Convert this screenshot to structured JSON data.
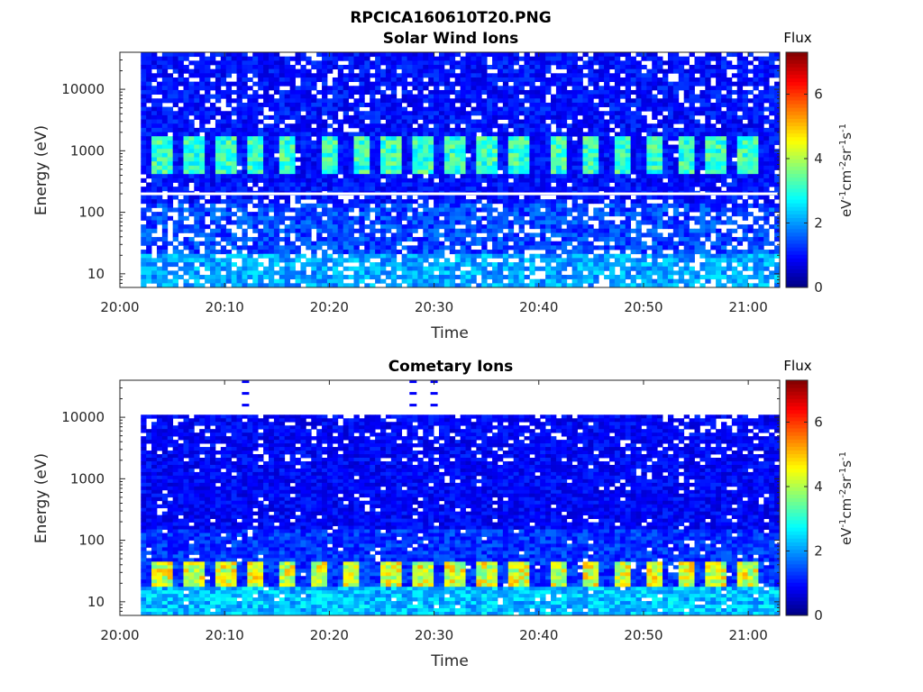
{
  "figure": {
    "title": "RPCICA160610T20.PNG"
  },
  "chart_data": [
    {
      "type": "heatmap",
      "title": "Solar Wind Ions",
      "xlabel": "Time",
      "ylabel": "Energy (eV)",
      "x_ticks": [
        "20:00",
        "20:10",
        "20:20",
        "20:30",
        "20:40",
        "20:50",
        "21:00"
      ],
      "x_range": [
        "20:00",
        "21:03"
      ],
      "data_start": "20:02",
      "y_scale": "log",
      "y_ticks": [
        "10",
        "100",
        "1000",
        "10000"
      ],
      "y_range": [
        6,
        40000
      ],
      "colorbar": {
        "title": "Flux",
        "label": "eV-1cm-2sr-1s-1",
        "ticks": [
          "0",
          "2",
          "4",
          "6"
        ],
        "range": [
          0,
          7.3
        ],
        "colormap": "jet"
      },
      "features": {
        "pulse_band_energy_eV": [
          450,
          1800
        ],
        "pulse_peak_flux": 3.8,
        "pulse_times": [
          "20:04",
          "20:07",
          "20:10",
          "20:13",
          "20:16",
          "20:20",
          "20:23",
          "20:26",
          "20:29",
          "20:32",
          "20:35",
          "20:38",
          "20:42",
          "20:45",
          "20:48",
          "20:51",
          "20:54",
          "20:57",
          "21:00"
        ],
        "gap_line_energy_eV": 200,
        "low_energy_flux_below_20eV": 2.2,
        "background_flux": 1.0
      }
    },
    {
      "type": "heatmap",
      "title": "Cometary Ions",
      "xlabel": "Time",
      "ylabel": "Energy (eV)",
      "x_ticks": [
        "20:00",
        "20:10",
        "20:20",
        "20:30",
        "20:40",
        "20:50",
        "21:00"
      ],
      "x_range": [
        "20:00",
        "21:03"
      ],
      "data_start": "20:02",
      "y_scale": "log",
      "y_ticks": [
        "10",
        "100",
        "1000",
        "10000"
      ],
      "y_range": [
        6,
        40000
      ],
      "colorbar": {
        "title": "Flux",
        "label": "eV-1cm-2sr-1s-1",
        "ticks": [
          "0",
          "2",
          "4",
          "6"
        ],
        "range": [
          0,
          7.3
        ],
        "colormap": "jet"
      },
      "features": {
        "data_top_energy_eV": 11000,
        "pulse_band_energy_eV": [
          18,
          45
        ],
        "pulse_peak_flux": 5.2,
        "pulse_times": [
          "20:04",
          "20:07",
          "20:10",
          "20:13",
          "20:16",
          "20:19",
          "20:22",
          "20:26",
          "20:29",
          "20:32",
          "20:35",
          "20:38",
          "20:42",
          "20:45",
          "20:48",
          "20:51",
          "20:54",
          "20:57",
          "21:00"
        ],
        "high_energy_spikes": [
          "20:12",
          "20:28",
          "20:30"
        ],
        "low_energy_flux_below_18eV": 2.4,
        "background_flux": 0.9
      }
    }
  ]
}
